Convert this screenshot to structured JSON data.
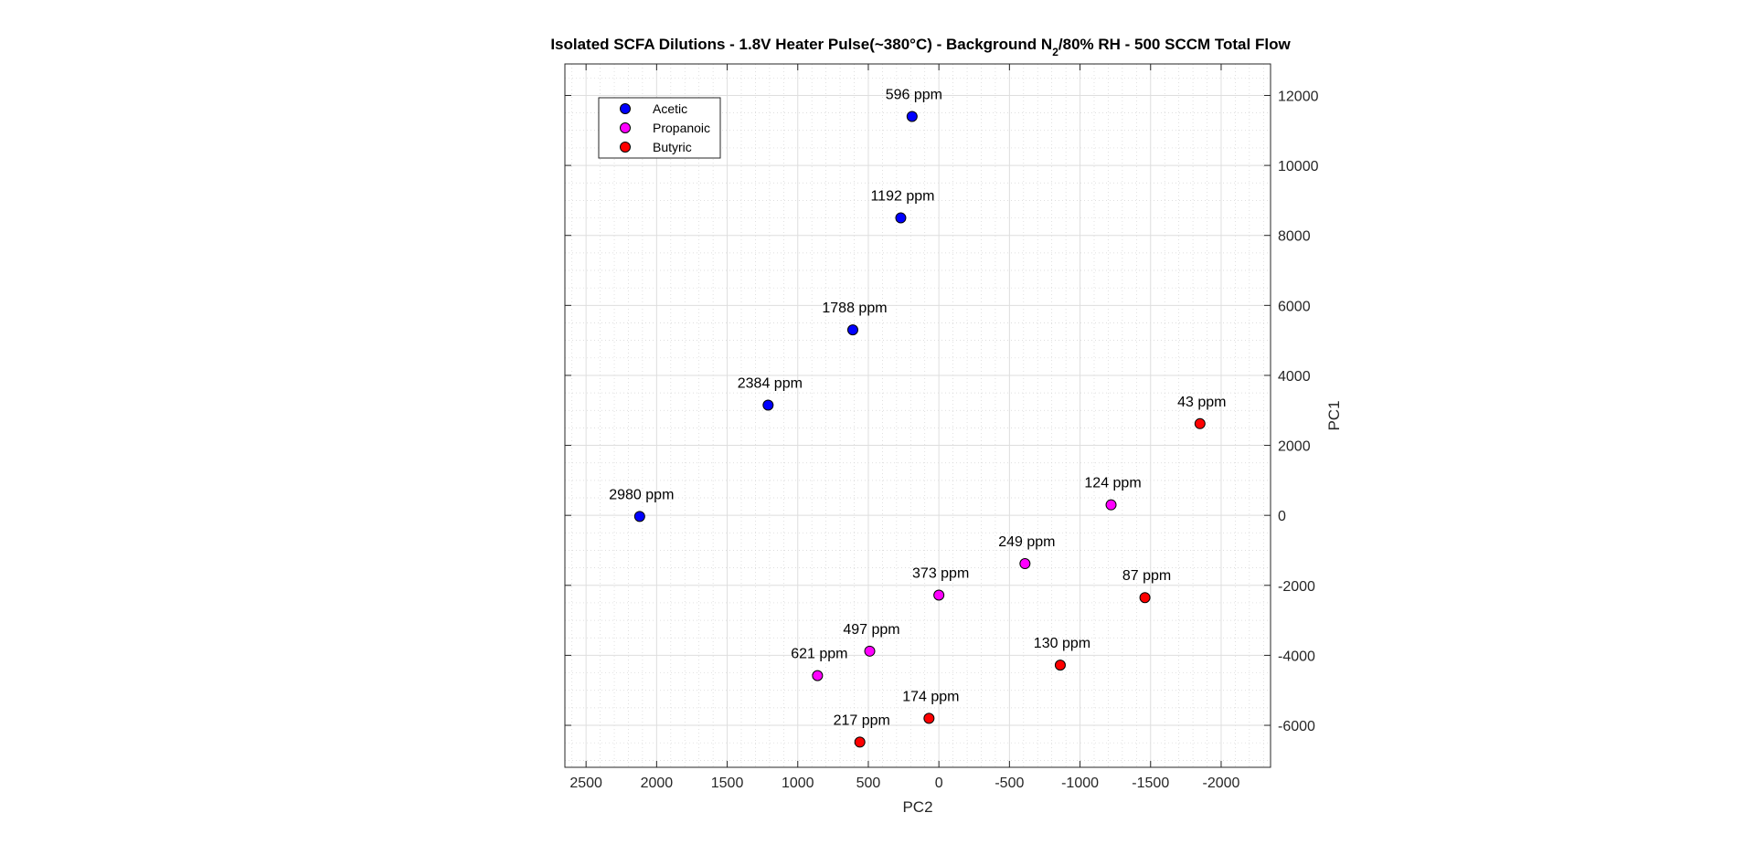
{
  "chart_data": {
    "type": "scatter",
    "title": {
      "before_sub": "Isolated SCFA Dilutions - 1.8V Heater Pulse(~380°C) - Background N",
      "sub": "2",
      "after_sub": "/80% RH - 500 SCCM Total Flow"
    },
    "xlabel": "PC2",
    "ylabel": "PC1",
    "xlim": [
      2650,
      -2350
    ],
    "ylim": [
      -7200,
      12900
    ],
    "x_reversed": true,
    "y_axis_position": "right",
    "xticks": [
      2500,
      2000,
      1500,
      1000,
      500,
      0,
      -500,
      -1000,
      -1500,
      -2000
    ],
    "yticks": [
      -6000,
      -4000,
      -2000,
      0,
      2000,
      4000,
      6000,
      8000,
      10000,
      12000
    ],
    "grid": "on (major and minor)",
    "legend_placement": "top-left",
    "series": [
      {
        "name": "Acetic",
        "color": "#0000ff",
        "points": [
          {
            "x": 190,
            "y": 11400,
            "label": "596 ppm"
          },
          {
            "x": 270,
            "y": 8500,
            "label": "1192 ppm"
          },
          {
            "x": 610,
            "y": 5300,
            "label": "1788 ppm"
          },
          {
            "x": 1210,
            "y": 3150,
            "label": "2384 ppm"
          },
          {
            "x": 2120,
            "y": -30,
            "label": "2980 ppm"
          }
        ]
      },
      {
        "name": "Propanoic",
        "color": "#ff00ff",
        "points": [
          {
            "x": -1220,
            "y": 300,
            "label": "124 ppm"
          },
          {
            "x": -610,
            "y": -1380,
            "label": "249 ppm"
          },
          {
            "x": 0,
            "y": -2280,
            "label": "373 ppm"
          },
          {
            "x": 490,
            "y": -3880,
            "label": "497 ppm"
          },
          {
            "x": 860,
            "y": -4580,
            "label": "621 ppm"
          }
        ]
      },
      {
        "name": "Butyric",
        "color": "#ff0000",
        "points": [
          {
            "x": -1850,
            "y": 2620,
            "label": "43 ppm"
          },
          {
            "x": -1460,
            "y": -2350,
            "label": "87 ppm"
          },
          {
            "x": -860,
            "y": -4280,
            "label": "130 ppm"
          },
          {
            "x": 70,
            "y": -5800,
            "label": "174 ppm"
          },
          {
            "x": 560,
            "y": -6480,
            "label": "217 ppm"
          }
        ]
      }
    ]
  }
}
